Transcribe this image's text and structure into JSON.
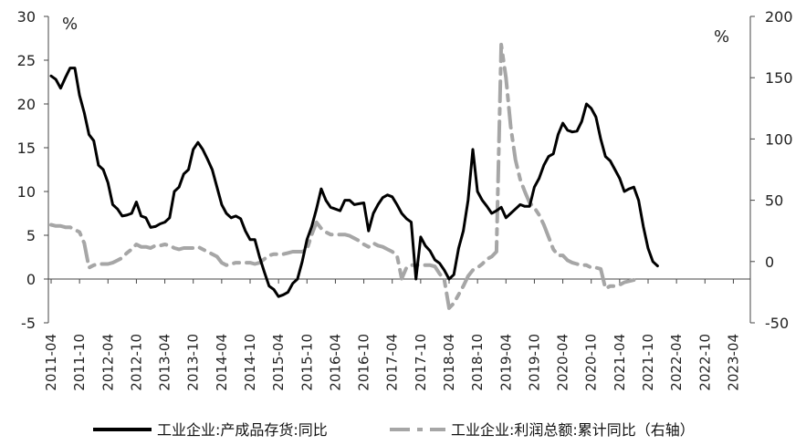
{
  "chart_data": {
    "type": "line",
    "x_labels": [
      "2011-04",
      "2011-10",
      "2012-04",
      "2012-10",
      "2013-04",
      "2013-10",
      "2014-04",
      "2014-10",
      "2015-04",
      "2015-10",
      "2016-04",
      "2016-10",
      "2017-04",
      "2017-10",
      "2018-04",
      "2018-10",
      "2019-04",
      "2019-10",
      "2020-04",
      "2020-10",
      "2021-04",
      "2021-10",
      "2022-04",
      "2022-10",
      "2023-04"
    ],
    "y_left": {
      "unit": "%",
      "min": -5,
      "max": 30,
      "ticks": [
        30,
        25,
        20,
        15,
        10,
        5,
        0,
        -5
      ]
    },
    "y_right": {
      "unit": "%",
      "min": -50,
      "max": 200,
      "ticks": [
        200,
        150,
        100,
        50,
        0,
        -50
      ]
    },
    "legend_position": "bottom",
    "series": [
      {
        "name": "工业企业:产成品存货:同比",
        "axis": "left",
        "color": "#000000",
        "style": "solid",
        "points": [
          [
            "2011-04",
            23.2
          ],
          [
            "2011-05",
            22.8
          ],
          [
            "2011-06",
            21.8
          ],
          [
            "2011-07",
            23.0
          ],
          [
            "2011-08",
            24.1
          ],
          [
            "2011-09",
            24.1
          ],
          [
            "2011-10",
            21.0
          ],
          [
            "2011-11",
            19.0
          ],
          [
            "2011-12",
            16.5
          ],
          [
            "2012-01",
            15.8
          ],
          [
            "2012-02",
            13.0
          ],
          [
            "2012-03",
            12.5
          ],
          [
            "2012-04",
            11.0
          ],
          [
            "2012-05",
            8.5
          ],
          [
            "2012-06",
            8.0
          ],
          [
            "2012-07",
            7.2
          ],
          [
            "2012-08",
            7.3
          ],
          [
            "2012-09",
            7.5
          ],
          [
            "2012-10",
            8.8
          ],
          [
            "2012-11",
            7.2
          ],
          [
            "2012-12",
            7.0
          ],
          [
            "2013-01",
            5.9
          ],
          [
            "2013-02",
            6.0
          ],
          [
            "2013-03",
            6.3
          ],
          [
            "2013-04",
            6.5
          ],
          [
            "2013-05",
            7.0
          ],
          [
            "2013-06",
            10.0
          ],
          [
            "2013-07",
            10.5
          ],
          [
            "2013-08",
            12.0
          ],
          [
            "2013-09",
            12.5
          ],
          [
            "2013-10",
            14.8
          ],
          [
            "2013-11",
            15.6
          ],
          [
            "2013-12",
            14.8
          ],
          [
            "2014-01",
            13.7
          ],
          [
            "2014-02",
            12.5
          ],
          [
            "2014-03",
            10.5
          ],
          [
            "2014-04",
            8.5
          ],
          [
            "2014-05",
            7.5
          ],
          [
            "2014-06",
            7.0
          ],
          [
            "2014-07",
            7.2
          ],
          [
            "2014-08",
            6.9
          ],
          [
            "2014-09",
            5.5
          ],
          [
            "2014-10",
            4.5
          ],
          [
            "2014-11",
            4.5
          ],
          [
            "2014-12",
            2.5
          ],
          [
            "2015-01",
            0.8
          ],
          [
            "2015-02",
            -0.8
          ],
          [
            "2015-03",
            -1.2
          ],
          [
            "2015-04",
            -2.0
          ],
          [
            "2015-05",
            -1.8
          ],
          [
            "2015-06",
            -1.5
          ],
          [
            "2015-07",
            -0.5
          ],
          [
            "2015-08",
            0.0
          ],
          [
            "2015-09",
            2.0
          ],
          [
            "2015-10",
            4.5
          ],
          [
            "2015-11",
            6.0
          ],
          [
            "2015-12",
            8.0
          ],
          [
            "2016-01",
            10.3
          ],
          [
            "2016-02",
            9.0
          ],
          [
            "2016-03",
            8.2
          ],
          [
            "2016-04",
            8.0
          ],
          [
            "2016-05",
            7.8
          ],
          [
            "2016-06",
            9.0
          ],
          [
            "2016-07",
            9.0
          ],
          [
            "2016-08",
            8.5
          ],
          [
            "2016-09",
            8.6
          ],
          [
            "2016-10",
            8.7
          ],
          [
            "2016-11",
            5.5
          ],
          [
            "2016-12",
            7.5
          ],
          [
            "2017-01",
            8.5
          ],
          [
            "2017-02",
            9.3
          ],
          [
            "2017-03",
            9.6
          ],
          [
            "2017-04",
            9.4
          ],
          [
            "2017-05",
            8.5
          ],
          [
            "2017-06",
            7.5
          ],
          [
            "2017-07",
            6.9
          ],
          [
            "2017-08",
            6.5
          ],
          [
            "2017-09",
            0.0
          ],
          [
            "2017-10",
            4.8
          ],
          [
            "2017-11",
            3.8
          ],
          [
            "2017-12",
            3.2
          ],
          [
            "2018-01",
            2.2
          ],
          [
            "2018-02",
            1.8
          ],
          [
            "2018-03",
            1.0
          ],
          [
            "2018-04",
            0.0
          ],
          [
            "2018-05",
            0.5
          ],
          [
            "2018-06",
            3.5
          ],
          [
            "2018-07",
            5.5
          ],
          [
            "2018-08",
            9.0
          ],
          [
            "2018-09",
            14.8
          ],
          [
            "2018-10",
            10.0
          ],
          [
            "2018-11",
            9.0
          ],
          [
            "2018-12",
            8.3
          ],
          [
            "2019-01",
            7.5
          ],
          [
            "2019-02",
            7.8
          ],
          [
            "2019-03",
            8.2
          ],
          [
            "2019-04",
            7.0
          ],
          [
            "2019-05",
            7.5
          ],
          [
            "2019-06",
            8.0
          ],
          [
            "2019-07",
            8.5
          ],
          [
            "2019-08",
            8.3
          ],
          [
            "2019-09",
            8.3
          ],
          [
            "2019-10",
            10.5
          ],
          [
            "2019-11",
            11.5
          ],
          [
            "2019-12",
            13.0
          ],
          [
            "2020-01",
            14.0
          ],
          [
            "2020-02",
            14.3
          ],
          [
            "2020-03",
            16.5
          ],
          [
            "2020-04",
            17.8
          ],
          [
            "2020-05",
            17.0
          ],
          [
            "2020-06",
            16.8
          ],
          [
            "2020-07",
            16.9
          ],
          [
            "2020-08",
            18.0
          ],
          [
            "2020-09",
            20.0
          ],
          [
            "2020-10",
            19.5
          ],
          [
            "2020-11",
            18.5
          ],
          [
            "2020-12",
            16.0
          ],
          [
            "2021-01",
            14.0
          ],
          [
            "2021-02",
            13.5
          ],
          [
            "2021-03",
            12.5
          ],
          [
            "2021-04",
            11.5
          ],
          [
            "2021-05",
            10.0
          ],
          [
            "2021-06",
            10.3
          ],
          [
            "2021-07",
            10.5
          ],
          [
            "2021-08",
            9.0
          ],
          [
            "2021-09",
            6.0
          ],
          [
            "2021-10",
            3.5
          ],
          [
            "2021-11",
            2.0
          ],
          [
            "2021-12",
            1.5
          ]
        ]
      },
      {
        "name": "工业企业:利润总额:累计同比（右轴）",
        "axis": "right",
        "color": "#a6a6a6",
        "style": "dashed",
        "points": [
          [
            "2011-04",
            30
          ],
          [
            "2011-05",
            29
          ],
          [
            "2011-06",
            29
          ],
          [
            "2011-07",
            28
          ],
          [
            "2011-08",
            28
          ],
          [
            "2011-09",
            26
          ],
          [
            "2011-10",
            24
          ],
          [
            "2011-11",
            15
          ],
          [
            "2011-12",
            -5
          ],
          [
            "2012-01",
            -3
          ],
          [
            "2012-02",
            -2
          ],
          [
            "2012-03",
            -2
          ],
          [
            "2012-04",
            -2
          ],
          [
            "2012-05",
            -1
          ],
          [
            "2012-06",
            1
          ],
          [
            "2012-07",
            3
          ],
          [
            "2012-08",
            7
          ],
          [
            "2012-09",
            10
          ],
          [
            "2012-10",
            14
          ],
          [
            "2012-11",
            12
          ],
          [
            "2012-12",
            12
          ],
          [
            "2013-01",
            11
          ],
          [
            "2013-02",
            13
          ],
          [
            "2013-03",
            13
          ],
          [
            "2013-04",
            14
          ],
          [
            "2013-05",
            13
          ],
          [
            "2013-06",
            11
          ],
          [
            "2013-07",
            10
          ],
          [
            "2013-08",
            11
          ],
          [
            "2013-09",
            11
          ],
          [
            "2013-10",
            11
          ],
          [
            "2013-11",
            12
          ],
          [
            "2013-12",
            10
          ],
          [
            "2014-01",
            8
          ],
          [
            "2014-02",
            6
          ],
          [
            "2014-03",
            4
          ],
          [
            "2014-04",
            -1
          ],
          [
            "2014-05",
            -3
          ],
          [
            "2014-06",
            -2
          ],
          [
            "2014-07",
            -1
          ],
          [
            "2014-08",
            -1
          ],
          [
            "2014-09",
            -1
          ],
          [
            "2014-10",
            -1
          ],
          [
            "2014-11",
            -2
          ],
          [
            "2014-12",
            -1
          ],
          [
            "2015-01",
            2
          ],
          [
            "2015-02",
            5
          ],
          [
            "2015-03",
            6
          ],
          [
            "2015-04",
            6
          ],
          [
            "2015-05",
            6
          ],
          [
            "2015-06",
            7
          ],
          [
            "2015-07",
            8
          ],
          [
            "2015-08",
            8
          ],
          [
            "2015-09",
            8
          ],
          [
            "2015-10",
            10
          ],
          [
            "2015-11",
            22
          ],
          [
            "2015-12",
            32
          ],
          [
            "2016-01",
            27
          ],
          [
            "2016-02",
            24
          ],
          [
            "2016-03",
            22
          ],
          [
            "2016-04",
            22
          ],
          [
            "2016-05",
            22
          ],
          [
            "2016-06",
            22
          ],
          [
            "2016-07",
            21
          ],
          [
            "2016-08",
            19
          ],
          [
            "2016-09",
            17
          ],
          [
            "2016-10",
            14
          ],
          [
            "2016-11",
            12
          ],
          [
            "2016-12",
            15
          ],
          [
            "2017-01",
            13
          ],
          [
            "2017-02",
            12
          ],
          [
            "2017-03",
            10
          ],
          [
            "2017-04",
            8
          ],
          [
            "2017-05",
            5
          ],
          [
            "2017-06",
            -14
          ],
          [
            "2017-07",
            -5
          ],
          [
            "2017-08",
            -3
          ],
          [
            "2017-09",
            -3
          ],
          [
            "2017-10",
            -3
          ],
          [
            "2017-11",
            -3
          ],
          [
            "2017-12",
            -3
          ],
          [
            "2018-01",
            -4
          ],
          [
            "2018-02",
            -10
          ],
          [
            "2018-03",
            -15
          ],
          [
            "2018-04",
            -38
          ],
          [
            "2018-05",
            -34
          ],
          [
            "2018-06",
            -27
          ],
          [
            "2018-07",
            -20
          ],
          [
            "2018-08",
            -12
          ],
          [
            "2018-09",
            -7
          ],
          [
            "2018-10",
            -5
          ],
          [
            "2018-11",
            -2
          ],
          [
            "2018-12",
            2
          ],
          [
            "2019-01",
            4
          ],
          [
            "2019-02",
            8
          ],
          [
            "2019-03",
            177
          ],
          [
            "2019-04",
            150
          ],
          [
            "2019-05",
            110
          ],
          [
            "2019-06",
            83
          ],
          [
            "2019-07",
            67
          ],
          [
            "2019-08",
            57
          ],
          [
            "2019-09",
            48
          ],
          [
            "2019-10",
            44
          ],
          [
            "2019-11",
            38
          ],
          [
            "2019-12",
            30
          ],
          [
            "2020-01",
            20
          ],
          [
            "2020-02",
            10
          ],
          [
            "2020-03",
            5
          ],
          [
            "2020-04",
            5
          ],
          [
            "2020-05",
            1
          ],
          [
            "2020-06",
            -1
          ],
          [
            "2020-07",
            -2
          ],
          [
            "2020-08",
            -3
          ],
          [
            "2020-09",
            -3
          ],
          [
            "2020-10",
            -5
          ],
          [
            "2020-11",
            -5
          ],
          [
            "2020-12",
            -6
          ],
          [
            "2021-01",
            -22
          ],
          [
            "2021-02",
            -20
          ],
          [
            "2021-03",
            -20
          ],
          [
            "2021-04",
            -19
          ],
          [
            "2021-05",
            -17
          ],
          [
            "2021-06",
            -16
          ],
          [
            "2021-07",
            -15
          ]
        ]
      }
    ]
  }
}
